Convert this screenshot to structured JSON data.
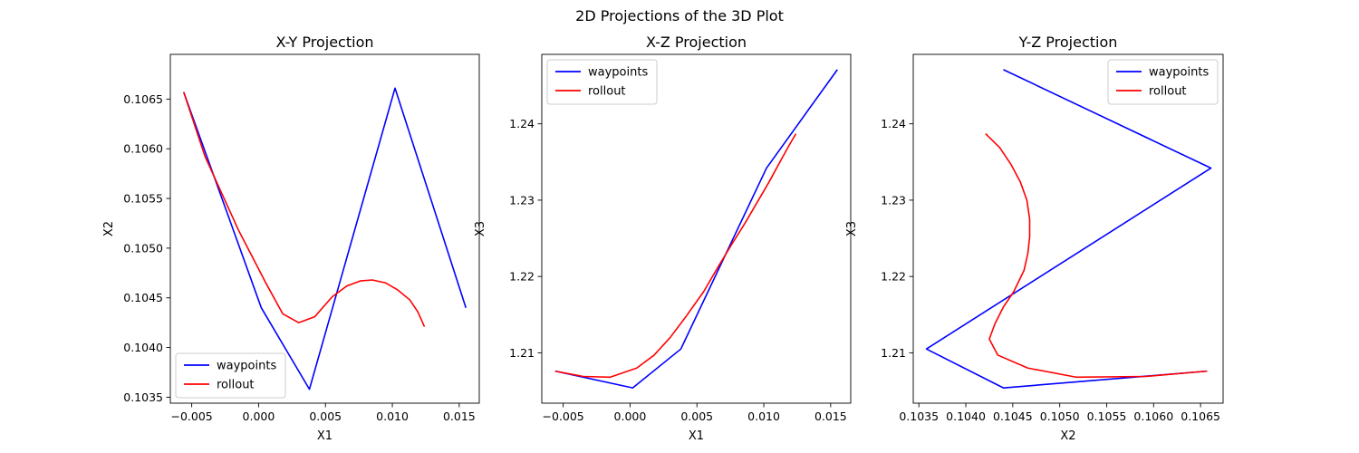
{
  "figure": {
    "title": "2D Projections of the 3D Plot"
  },
  "chart_data": [
    {
      "type": "line",
      "title": "X-Y Projection",
      "xlabel": "X1",
      "ylabel": "X2",
      "xlim": [
        -0.0066,
        0.0165
      ],
      "ylim": [
        0.10344,
        0.10695
      ],
      "xticks": [
        -0.005,
        0.0,
        0.005,
        0.01,
        0.015
      ],
      "xtick_labels": [
        "−0.005",
        "0.000",
        "0.005",
        "0.010",
        "0.015"
      ],
      "yticks": [
        0.1035,
        0.104,
        0.1045,
        0.105,
        0.1055,
        0.106,
        0.1065
      ],
      "ytick_labels": [
        "0.1035",
        "0.1040",
        "0.1045",
        "0.1050",
        "0.1055",
        "0.1060",
        "0.1065"
      ],
      "legend_position": "lower-left",
      "series": [
        {
          "name": "waypoints",
          "color": "#0000ff",
          "points": [
            [
              -0.0056,
              0.10657
            ],
            [
              0.0002,
              0.1044
            ],
            [
              0.0038,
              0.10358
            ],
            [
              0.0102,
              0.10661
            ],
            [
              0.0155,
              0.1044
            ]
          ]
        },
        {
          "name": "rollout",
          "color": "#ff0000",
          "points": [
            [
              -0.0056,
              0.10657
            ],
            [
              -0.004,
              0.10592
            ],
            [
              -0.0015,
              0.10518
            ],
            [
              0.0005,
              0.10466
            ],
            [
              0.0018,
              0.10434
            ],
            [
              0.003,
              0.10425
            ],
            [
              0.0042,
              0.10431
            ],
            [
              0.0055,
              0.10451
            ],
            [
              0.0066,
              0.10462
            ],
            [
              0.0076,
              0.10467
            ],
            [
              0.0085,
              0.10468
            ],
            [
              0.0095,
              0.10465
            ],
            [
              0.0104,
              0.10458
            ],
            [
              0.0113,
              0.10448
            ],
            [
              0.0119,
              0.10436
            ],
            [
              0.0124,
              0.10421
            ]
          ]
        }
      ]
    },
    {
      "type": "line",
      "title": "X-Z Projection",
      "xlabel": "X1",
      "ylabel": "X3",
      "xlim": [
        -0.0066,
        0.0165
      ],
      "ylim": [
        1.2034,
        1.2491
      ],
      "xticks": [
        -0.005,
        0.0,
        0.005,
        0.01,
        0.015
      ],
      "xtick_labels": [
        "−0.005",
        "0.000",
        "0.005",
        "0.010",
        "0.015"
      ],
      "yticks": [
        1.21,
        1.22,
        1.23,
        1.24
      ],
      "ytick_labels": [
        "1.21",
        "1.22",
        "1.23",
        "1.24"
      ],
      "legend_position": "top-left",
      "series": [
        {
          "name": "waypoints",
          "color": "#0000ff",
          "points": [
            [
              -0.0056,
              1.2076
            ],
            [
              0.0002,
              1.2054
            ],
            [
              0.0038,
              1.2105
            ],
            [
              0.0102,
              1.2342
            ],
            [
              0.0155,
              1.2471
            ]
          ]
        },
        {
          "name": "rollout",
          "color": "#ff0000",
          "points": [
            [
              -0.0056,
              1.2076
            ],
            [
              -0.0035,
              1.2069
            ],
            [
              -0.0015,
              1.2068
            ],
            [
              0.0005,
              1.208
            ],
            [
              0.0018,
              1.2097
            ],
            [
              0.003,
              1.212
            ],
            [
              0.0042,
              1.2148
            ],
            [
              0.0055,
              1.218
            ],
            [
              0.0066,
              1.2213
            ],
            [
              0.0076,
              1.2242
            ],
            [
              0.0086,
              1.227
            ],
            [
              0.0095,
              1.2297
            ],
            [
              0.0104,
              1.2324
            ],
            [
              0.0113,
              1.2353
            ],
            [
              0.0119,
              1.2372
            ],
            [
              0.0124,
              1.2387
            ]
          ]
        }
      ]
    },
    {
      "type": "line",
      "title": "Y-Z Projection",
      "xlabel": "X2",
      "ylabel": "X3",
      "xlim": [
        0.10344,
        0.10674
      ],
      "ylim": [
        1.2034,
        1.2491
      ],
      "xticks": [
        0.1035,
        0.104,
        0.1045,
        0.105,
        0.1055,
        0.106,
        0.1065
      ],
      "xtick_labels": [
        "0.1035",
        "0.1040",
        "0.1045",
        "0.1050",
        "0.1055",
        "0.1060",
        "0.1065"
      ],
      "yticks": [
        1.21,
        1.22,
        1.23,
        1.24
      ],
      "ytick_labels": [
        "1.21",
        "1.22",
        "1.23",
        "1.24"
      ],
      "legend_position": "top-right",
      "series": [
        {
          "name": "waypoints",
          "color": "#0000ff",
          "points": [
            [
              0.1044,
              1.2471
            ],
            [
              0.10661,
              1.2342
            ],
            [
              0.10358,
              1.2105
            ],
            [
              0.1044,
              1.2054
            ],
            [
              0.10657,
              1.2076
            ]
          ]
        },
        {
          "name": "rollout",
          "color": "#ff0000",
          "points": [
            [
              0.10421,
              1.2387
            ],
            [
              0.10436,
              1.2369
            ],
            [
              0.10448,
              1.2347
            ],
            [
              0.10458,
              1.2324
            ],
            [
              0.10465,
              1.23
            ],
            [
              0.10468,
              1.2275
            ],
            [
              0.10468,
              1.2252
            ],
            [
              0.10466,
              1.223
            ],
            [
              0.10462,
              1.2208
            ],
            [
              0.10451,
              1.218
            ],
            [
              0.1044,
              1.216
            ],
            [
              0.10431,
              1.2138
            ],
            [
              0.10425,
              1.2118
            ],
            [
              0.10434,
              1.2097
            ],
            [
              0.10466,
              1.208
            ],
            [
              0.10518,
              1.2068
            ],
            [
              0.10592,
              1.2069
            ],
            [
              0.10657,
              1.2076
            ]
          ]
        }
      ]
    }
  ]
}
